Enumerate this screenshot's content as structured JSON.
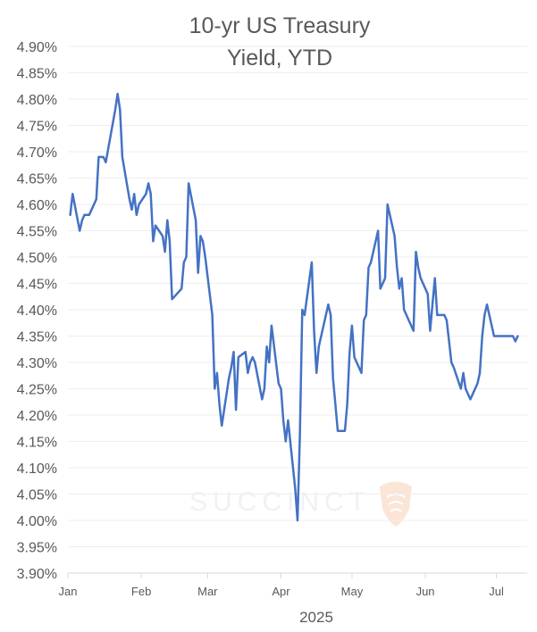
{
  "colors": {
    "line": "#4472C4",
    "grid": "#eeeeee",
    "axis": "#d9d9d9",
    "text": "#595959",
    "watermark_logo": "#fbe5d6"
  },
  "watermark": {
    "text": "SUCCINCT",
    "icon": "fingerprint-shield-icon"
  },
  "chart_data": {
    "type": "line",
    "title": "10-yr US Treasury Yield, YTD",
    "title_lines": [
      "10-yr US Treasury",
      "Yield, YTD"
    ],
    "xlabel": "2025",
    "ylabel": "",
    "ylim": [
      3.9,
      4.9
    ],
    "yticks": [
      "4.90%",
      "4.85%",
      "4.80%",
      "4.75%",
      "4.70%",
      "4.65%",
      "4.60%",
      "4.55%",
      "4.50%",
      "4.45%",
      "4.40%",
      "4.35%",
      "4.30%",
      "4.25%",
      "4.20%",
      "4.15%",
      "4.10%",
      "4.05%",
      "4.00%",
      "3.95%",
      "3.90%"
    ],
    "xticks": [
      "Jan",
      "Feb",
      "Mar",
      "Apr",
      "May",
      "Jun",
      "Jul"
    ],
    "grid": true,
    "legend": "none",
    "series": [
      {
        "x": [
          "2025-01-02",
          "2025-01-03",
          "2025-01-06",
          "2025-01-07",
          "2025-01-08",
          "2025-01-10",
          "2025-01-13",
          "2025-01-14",
          "2025-01-15",
          "2025-01-16",
          "2025-01-17",
          "2025-01-21",
          "2025-01-22",
          "2025-01-23",
          "2025-01-24",
          "2025-01-27",
          "2025-01-28",
          "2025-01-29",
          "2025-01-30",
          "2025-01-31",
          "2025-02-03",
          "2025-02-04",
          "2025-02-05",
          "2025-02-06",
          "2025-02-07",
          "2025-02-10",
          "2025-02-11",
          "2025-02-12",
          "2025-02-13",
          "2025-02-14",
          "2025-02-18",
          "2025-02-19",
          "2025-02-20",
          "2025-02-21",
          "2025-02-24",
          "2025-02-25",
          "2025-02-26",
          "2025-02-27",
          "2025-02-28",
          "2025-03-03",
          "2025-03-04",
          "2025-03-05",
          "2025-03-06",
          "2025-03-07",
          "2025-03-10",
          "2025-03-11",
          "2025-03-12",
          "2025-03-13",
          "2025-03-14",
          "2025-03-17",
          "2025-03-18",
          "2025-03-19",
          "2025-03-20",
          "2025-03-21",
          "2025-03-24",
          "2025-03-25",
          "2025-03-26",
          "2025-03-27",
          "2025-03-28",
          "2025-03-31",
          "2025-04-01",
          "2025-04-02",
          "2025-04-03",
          "2025-04-04",
          "2025-04-07",
          "2025-04-08",
          "2025-04-09",
          "2025-04-10",
          "2025-04-11",
          "2025-04-14",
          "2025-04-15",
          "2025-04-16",
          "2025-04-17",
          "2025-04-21",
          "2025-04-22",
          "2025-04-23",
          "2025-04-24",
          "2025-04-25",
          "2025-04-28",
          "2025-04-29",
          "2025-04-30",
          "2025-05-01",
          "2025-05-02",
          "2025-05-05",
          "2025-05-06",
          "2025-05-07",
          "2025-05-08",
          "2025-05-09",
          "2025-05-12",
          "2025-05-13",
          "2025-05-14",
          "2025-05-15",
          "2025-05-16",
          "2025-05-19",
          "2025-05-20",
          "2025-05-21",
          "2025-05-22",
          "2025-05-23",
          "2025-05-27",
          "2025-05-28",
          "2025-05-29",
          "2025-05-30",
          "2025-06-02",
          "2025-06-03",
          "2025-06-04",
          "2025-06-05",
          "2025-06-06",
          "2025-06-09",
          "2025-06-10",
          "2025-06-11",
          "2025-06-12",
          "2025-06-13",
          "2025-06-16",
          "2025-06-17",
          "2025-06-18",
          "2025-06-20",
          "2025-06-23",
          "2025-06-24",
          "2025-06-25",
          "2025-06-26",
          "2025-06-27",
          "2025-06-30",
          "2025-07-01",
          "2025-07-02",
          "2025-07-03",
          "2025-07-07",
          "2025-07-08",
          "2025-07-09",
          "2025-07-10"
        ],
        "values": [
          4.58,
          4.62,
          4.55,
          4.57,
          4.58,
          4.58,
          4.61,
          4.69,
          4.69,
          4.69,
          4.68,
          4.78,
          4.81,
          4.78,
          4.69,
          4.61,
          4.59,
          4.62,
          4.58,
          4.6,
          4.62,
          4.64,
          4.62,
          4.53,
          4.56,
          4.54,
          4.51,
          4.57,
          4.53,
          4.42,
          4.44,
          4.49,
          4.5,
          4.64,
          4.57,
          4.47,
          4.54,
          4.53,
          4.5,
          4.39,
          4.25,
          4.28,
          4.22,
          4.18,
          4.27,
          4.29,
          4.32,
          4.21,
          4.31,
          4.32,
          4.28,
          4.3,
          4.31,
          4.3,
          4.23,
          4.25,
          4.33,
          4.3,
          4.37,
          4.26,
          4.25,
          4.19,
          4.15,
          4.19,
          4.06,
          4.0,
          4.16,
          4.4,
          4.39,
          4.49,
          4.36,
          4.28,
          4.33,
          4.41,
          4.39,
          4.27,
          4.22,
          4.17,
          4.17,
          4.22,
          4.32,
          4.37,
          4.31,
          4.28,
          4.38,
          4.39,
          4.48,
          4.49,
          4.55,
          4.44,
          4.45,
          4.46,
          4.6,
          4.54,
          4.48,
          4.44,
          4.46,
          4.4,
          4.36,
          4.51,
          4.48,
          4.46,
          4.43,
          4.36,
          4.41,
          4.46,
          4.39,
          4.39,
          4.38,
          4.34,
          4.3,
          4.29,
          4.25,
          4.28,
          4.25,
          4.23,
          4.26,
          4.28,
          4.35,
          4.39,
          4.41,
          4.35,
          4.35,
          4.35,
          4.35,
          4.35,
          4.35,
          4.34,
          4.35
        ]
      }
    ]
  }
}
